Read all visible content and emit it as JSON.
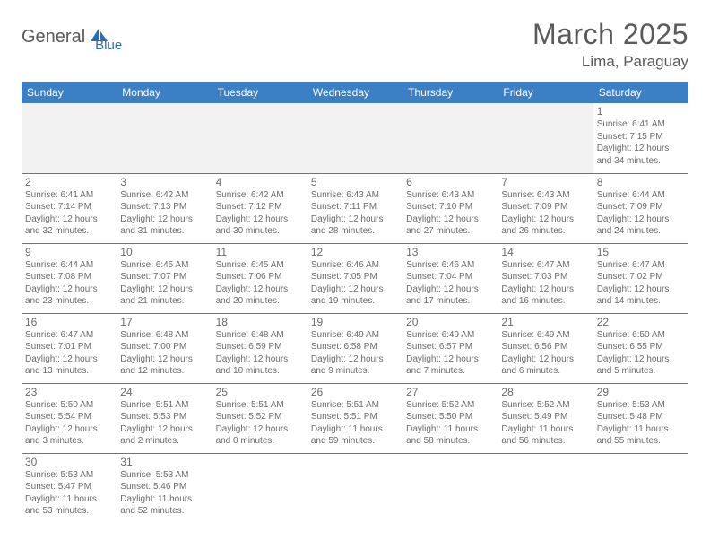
{
  "logo": {
    "part1": "General",
    "part2": "Blue"
  },
  "title": "March 2025",
  "location": "Lima, Paraguay",
  "colors": {
    "header_bg": "#3b7fc4",
    "header_text": "#ffffff",
    "border": "#3b7fc4",
    "text": "#6a6a6a",
    "logo_gray": "#5a5a5a",
    "logo_blue": "#2a6db5",
    "blank_bg": "#f2f2f2"
  },
  "weekdays": [
    "Sunday",
    "Monday",
    "Tuesday",
    "Wednesday",
    "Thursday",
    "Friday",
    "Saturday"
  ],
  "weeks": [
    [
      null,
      null,
      null,
      null,
      null,
      null,
      {
        "n": "1",
        "sr": "6:41 AM",
        "ss": "7:15 PM",
        "dl": "12 hours and 34 minutes."
      }
    ],
    [
      {
        "n": "2",
        "sr": "6:41 AM",
        "ss": "7:14 PM",
        "dl": "12 hours and 32 minutes."
      },
      {
        "n": "3",
        "sr": "6:42 AM",
        "ss": "7:13 PM",
        "dl": "12 hours and 31 minutes."
      },
      {
        "n": "4",
        "sr": "6:42 AM",
        "ss": "7:12 PM",
        "dl": "12 hours and 30 minutes."
      },
      {
        "n": "5",
        "sr": "6:43 AM",
        "ss": "7:11 PM",
        "dl": "12 hours and 28 minutes."
      },
      {
        "n": "6",
        "sr": "6:43 AM",
        "ss": "7:10 PM",
        "dl": "12 hours and 27 minutes."
      },
      {
        "n": "7",
        "sr": "6:43 AM",
        "ss": "7:09 PM",
        "dl": "12 hours and 26 minutes."
      },
      {
        "n": "8",
        "sr": "6:44 AM",
        "ss": "7:09 PM",
        "dl": "12 hours and 24 minutes."
      }
    ],
    [
      {
        "n": "9",
        "sr": "6:44 AM",
        "ss": "7:08 PM",
        "dl": "12 hours and 23 minutes."
      },
      {
        "n": "10",
        "sr": "6:45 AM",
        "ss": "7:07 PM",
        "dl": "12 hours and 21 minutes."
      },
      {
        "n": "11",
        "sr": "6:45 AM",
        "ss": "7:06 PM",
        "dl": "12 hours and 20 minutes."
      },
      {
        "n": "12",
        "sr": "6:46 AM",
        "ss": "7:05 PM",
        "dl": "12 hours and 19 minutes."
      },
      {
        "n": "13",
        "sr": "6:46 AM",
        "ss": "7:04 PM",
        "dl": "12 hours and 17 minutes."
      },
      {
        "n": "14",
        "sr": "6:47 AM",
        "ss": "7:03 PM",
        "dl": "12 hours and 16 minutes."
      },
      {
        "n": "15",
        "sr": "6:47 AM",
        "ss": "7:02 PM",
        "dl": "12 hours and 14 minutes."
      }
    ],
    [
      {
        "n": "16",
        "sr": "6:47 AM",
        "ss": "7:01 PM",
        "dl": "12 hours and 13 minutes."
      },
      {
        "n": "17",
        "sr": "6:48 AM",
        "ss": "7:00 PM",
        "dl": "12 hours and 12 minutes."
      },
      {
        "n": "18",
        "sr": "6:48 AM",
        "ss": "6:59 PM",
        "dl": "12 hours and 10 minutes."
      },
      {
        "n": "19",
        "sr": "6:49 AM",
        "ss": "6:58 PM",
        "dl": "12 hours and 9 minutes."
      },
      {
        "n": "20",
        "sr": "6:49 AM",
        "ss": "6:57 PM",
        "dl": "12 hours and 7 minutes."
      },
      {
        "n": "21",
        "sr": "6:49 AM",
        "ss": "6:56 PM",
        "dl": "12 hours and 6 minutes."
      },
      {
        "n": "22",
        "sr": "6:50 AM",
        "ss": "6:55 PM",
        "dl": "12 hours and 5 minutes."
      }
    ],
    [
      {
        "n": "23",
        "sr": "5:50 AM",
        "ss": "5:54 PM",
        "dl": "12 hours and 3 minutes."
      },
      {
        "n": "24",
        "sr": "5:51 AM",
        "ss": "5:53 PM",
        "dl": "12 hours and 2 minutes."
      },
      {
        "n": "25",
        "sr": "5:51 AM",
        "ss": "5:52 PM",
        "dl": "12 hours and 0 minutes."
      },
      {
        "n": "26",
        "sr": "5:51 AM",
        "ss": "5:51 PM",
        "dl": "11 hours and 59 minutes."
      },
      {
        "n": "27",
        "sr": "5:52 AM",
        "ss": "5:50 PM",
        "dl": "11 hours and 58 minutes."
      },
      {
        "n": "28",
        "sr": "5:52 AM",
        "ss": "5:49 PM",
        "dl": "11 hours and 56 minutes."
      },
      {
        "n": "29",
        "sr": "5:53 AM",
        "ss": "5:48 PM",
        "dl": "11 hours and 55 minutes."
      }
    ],
    [
      {
        "n": "30",
        "sr": "5:53 AM",
        "ss": "5:47 PM",
        "dl": "11 hours and 53 minutes."
      },
      {
        "n": "31",
        "sr": "5:53 AM",
        "ss": "5:46 PM",
        "dl": "11 hours and 52 minutes."
      },
      null,
      null,
      null,
      null,
      null
    ]
  ],
  "labels": {
    "sunrise": "Sunrise:",
    "sunset": "Sunset:",
    "daylight": "Daylight:"
  }
}
